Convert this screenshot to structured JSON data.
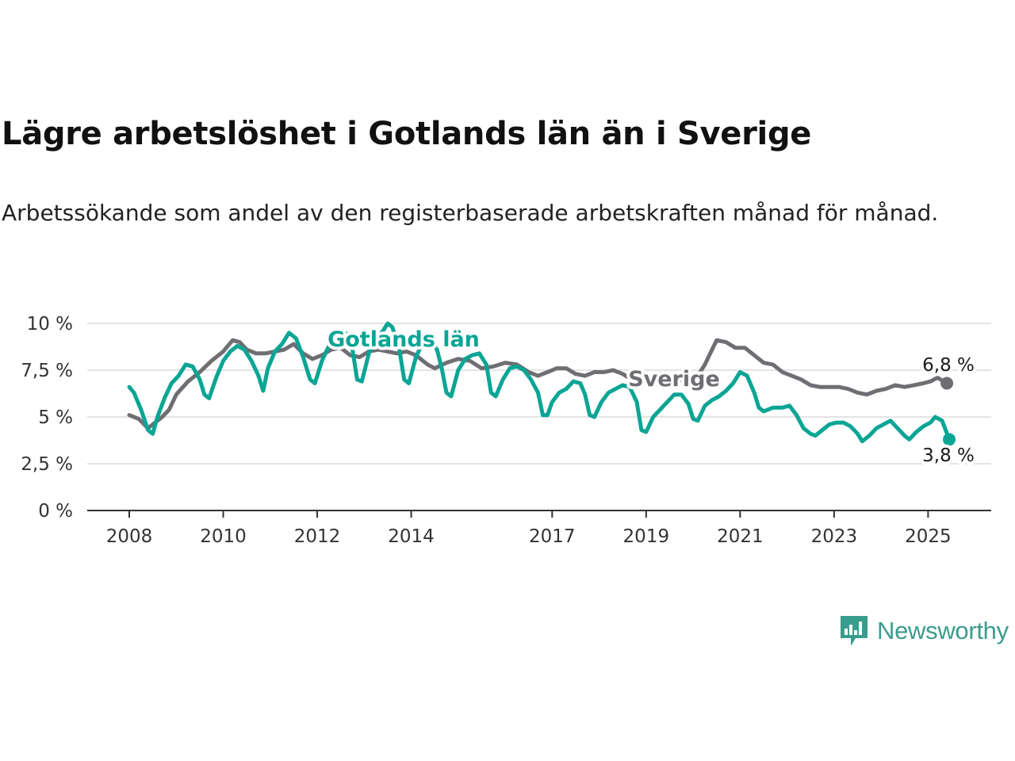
{
  "title": "Lägre arbetslöshet i Gotlands län än i Sverige",
  "subtitle": "Arbetssökande som andel av den registerbaserade arbetskraften månad för månad.",
  "brand": {
    "name": "Newsworthy",
    "color": "#3a9c8c",
    "icon": "newsworthy-logo-icon"
  },
  "chart_data": {
    "type": "line",
    "title": "Lägre arbetslöshet i Gotlands län än i Sverige",
    "xlabel": "",
    "ylabel": "",
    "ylim": [
      0,
      10
    ],
    "xlim": [
      2007.9,
      2026.15
    ],
    "grid": true,
    "y_ticks": [
      {
        "value": 0,
        "label": "0 %"
      },
      {
        "value": 2.5,
        "label": "2,5 %"
      },
      {
        "value": 5,
        "label": "5 %"
      },
      {
        "value": 7.5,
        "label": "7,5 %"
      },
      {
        "value": 10,
        "label": "10 %"
      }
    ],
    "x_ticks": [
      {
        "value": 2008,
        "label": "2008"
      },
      {
        "value": 2010,
        "label": "2010"
      },
      {
        "value": 2012,
        "label": "2012"
      },
      {
        "value": 2014,
        "label": "2014"
      },
      {
        "value": 2017,
        "label": "2017"
      },
      {
        "value": 2019,
        "label": "2019"
      },
      {
        "value": 2021,
        "label": "2021"
      },
      {
        "value": 2023,
        "label": "2023"
      },
      {
        "value": 2025,
        "label": "2025"
      }
    ],
    "series": [
      {
        "name": "Sverige",
        "color": "#6e6e73",
        "end_label": "6,8 %",
        "points": [
          [
            2008.0,
            5.1
          ],
          [
            2008.2,
            4.9
          ],
          [
            2008.4,
            4.4
          ],
          [
            2008.55,
            4.7
          ],
          [
            2008.7,
            5.0
          ],
          [
            2008.85,
            5.4
          ],
          [
            2009.0,
            6.2
          ],
          [
            2009.25,
            6.9
          ],
          [
            2009.5,
            7.4
          ],
          [
            2009.75,
            8.0
          ],
          [
            2010.0,
            8.5
          ],
          [
            2010.2,
            9.1
          ],
          [
            2010.35,
            9.0
          ],
          [
            2010.5,
            8.6
          ],
          [
            2010.7,
            8.4
          ],
          [
            2010.9,
            8.4
          ],
          [
            2011.1,
            8.5
          ],
          [
            2011.3,
            8.6
          ],
          [
            2011.5,
            8.9
          ],
          [
            2011.7,
            8.4
          ],
          [
            2011.9,
            8.1
          ],
          [
            2012.1,
            8.3
          ],
          [
            2012.3,
            8.6
          ],
          [
            2012.5,
            8.7
          ],
          [
            2012.7,
            8.3
          ],
          [
            2012.9,
            8.2
          ],
          [
            2013.1,
            8.5
          ],
          [
            2013.3,
            8.6
          ],
          [
            2013.5,
            8.5
          ],
          [
            2013.7,
            8.4
          ],
          [
            2013.9,
            8.5
          ],
          [
            2014.1,
            8.3
          ],
          [
            2014.35,
            7.8
          ],
          [
            2014.5,
            7.6
          ],
          [
            2014.75,
            7.9
          ],
          [
            2015.0,
            8.1
          ],
          [
            2015.25,
            8.0
          ],
          [
            2015.5,
            7.6
          ],
          [
            2015.75,
            7.7
          ],
          [
            2016.0,
            7.9
          ],
          [
            2016.25,
            7.8
          ],
          [
            2016.5,
            7.4
          ],
          [
            2016.7,
            7.2
          ],
          [
            2016.9,
            7.4
          ],
          [
            2017.1,
            7.6
          ],
          [
            2017.3,
            7.6
          ],
          [
            2017.5,
            7.3
          ],
          [
            2017.7,
            7.2
          ],
          [
            2017.9,
            7.4
          ],
          [
            2018.1,
            7.4
          ],
          [
            2018.3,
            7.5
          ],
          [
            2018.5,
            7.3
          ],
          [
            2018.7,
            7.0
          ],
          [
            2018.9,
            7.0
          ],
          [
            2019.1,
            7.1
          ],
          [
            2019.3,
            7.3
          ],
          [
            2019.6,
            7.0
          ],
          [
            2019.9,
            6.9
          ],
          [
            2020.1,
            7.2
          ],
          [
            2020.25,
            7.8
          ],
          [
            2020.5,
            9.1
          ],
          [
            2020.7,
            9.0
          ],
          [
            2020.9,
            8.7
          ],
          [
            2021.1,
            8.7
          ],
          [
            2021.3,
            8.3
          ],
          [
            2021.5,
            7.9
          ],
          [
            2021.7,
            7.8
          ],
          [
            2021.9,
            7.4
          ],
          [
            2022.1,
            7.2
          ],
          [
            2022.3,
            7.0
          ],
          [
            2022.5,
            6.7
          ],
          [
            2022.7,
            6.6
          ],
          [
            2022.9,
            6.6
          ],
          [
            2023.1,
            6.6
          ],
          [
            2023.3,
            6.5
          ],
          [
            2023.5,
            6.3
          ],
          [
            2023.7,
            6.2
          ],
          [
            2023.9,
            6.4
          ],
          [
            2024.1,
            6.5
          ],
          [
            2024.3,
            6.7
          ],
          [
            2024.5,
            6.6
          ],
          [
            2024.7,
            6.7
          ],
          [
            2024.9,
            6.8
          ],
          [
            2025.05,
            6.9
          ],
          [
            2025.2,
            7.1
          ],
          [
            2025.4,
            6.8
          ]
        ]
      },
      {
        "name": "Gotlands län",
        "color": "#0aa595",
        "end_label": "3,8 %",
        "points": [
          [
            2008.0,
            6.6
          ],
          [
            2008.1,
            6.3
          ],
          [
            2008.25,
            5.4
          ],
          [
            2008.4,
            4.3
          ],
          [
            2008.5,
            4.1
          ],
          [
            2008.6,
            5.0
          ],
          [
            2008.75,
            6.0
          ],
          [
            2008.9,
            6.8
          ],
          [
            2009.05,
            7.2
          ],
          [
            2009.2,
            7.8
          ],
          [
            2009.35,
            7.7
          ],
          [
            2009.5,
            7.0
          ],
          [
            2009.6,
            6.2
          ],
          [
            2009.7,
            6.0
          ],
          [
            2009.85,
            7.1
          ],
          [
            2010.0,
            8.0
          ],
          [
            2010.15,
            8.5
          ],
          [
            2010.3,
            8.8
          ],
          [
            2010.45,
            8.6
          ],
          [
            2010.6,
            8.0
          ],
          [
            2010.75,
            7.2
          ],
          [
            2010.85,
            6.4
          ],
          [
            2010.95,
            7.6
          ],
          [
            2011.1,
            8.5
          ],
          [
            2011.25,
            8.9
          ],
          [
            2011.4,
            9.5
          ],
          [
            2011.55,
            9.2
          ],
          [
            2011.7,
            8.2
          ],
          [
            2011.85,
            7.0
          ],
          [
            2011.95,
            6.8
          ],
          [
            2012.1,
            8.0
          ],
          [
            2012.25,
            8.8
          ],
          [
            2012.4,
            9.4
          ],
          [
            2012.5,
            9.6
          ],
          [
            2012.6,
            9.5
          ],
          [
            2012.75,
            8.6
          ],
          [
            2012.85,
            7.0
          ],
          [
            2012.95,
            6.9
          ],
          [
            2013.1,
            8.4
          ],
          [
            2013.25,
            9.2
          ],
          [
            2013.4,
            9.6
          ],
          [
            2013.5,
            10.0
          ],
          [
            2013.6,
            9.8
          ],
          [
            2013.75,
            8.6
          ],
          [
            2013.85,
            7.0
          ],
          [
            2013.95,
            6.8
          ],
          [
            2014.1,
            8.2
          ],
          [
            2014.25,
            9.0
          ],
          [
            2014.4,
            9.1
          ],
          [
            2014.55,
            8.6
          ],
          [
            2014.65,
            7.6
          ],
          [
            2014.75,
            6.3
          ],
          [
            2014.85,
            6.1
          ],
          [
            2015.0,
            7.5
          ],
          [
            2015.15,
            8.1
          ],
          [
            2015.3,
            8.3
          ],
          [
            2015.45,
            8.4
          ],
          [
            2015.6,
            7.8
          ],
          [
            2015.7,
            6.3
          ],
          [
            2015.8,
            6.1
          ],
          [
            2015.95,
            7.0
          ],
          [
            2016.1,
            7.6
          ],
          [
            2016.25,
            7.7
          ],
          [
            2016.4,
            7.5
          ],
          [
            2016.55,
            7.0
          ],
          [
            2016.7,
            6.3
          ],
          [
            2016.8,
            5.1
          ],
          [
            2016.9,
            5.1
          ],
          [
            2017.0,
            5.8
          ],
          [
            2017.15,
            6.3
          ],
          [
            2017.3,
            6.5
          ],
          [
            2017.45,
            6.9
          ],
          [
            2017.6,
            6.8
          ],
          [
            2017.7,
            6.2
          ],
          [
            2017.8,
            5.1
          ],
          [
            2017.9,
            5.0
          ],
          [
            2018.05,
            5.8
          ],
          [
            2018.2,
            6.3
          ],
          [
            2018.35,
            6.5
          ],
          [
            2018.5,
            6.7
          ],
          [
            2018.65,
            6.6
          ],
          [
            2018.8,
            5.8
          ],
          [
            2018.9,
            4.3
          ],
          [
            2019.0,
            4.2
          ],
          [
            2019.15,
            5.0
          ],
          [
            2019.3,
            5.4
          ],
          [
            2019.45,
            5.8
          ],
          [
            2019.6,
            6.2
          ],
          [
            2019.75,
            6.2
          ],
          [
            2019.9,
            5.7
          ],
          [
            2020.0,
            4.9
          ],
          [
            2020.1,
            4.8
          ],
          [
            2020.25,
            5.6
          ],
          [
            2020.4,
            5.9
          ],
          [
            2020.55,
            6.1
          ],
          [
            2020.7,
            6.4
          ],
          [
            2020.85,
            6.8
          ],
          [
            2021.0,
            7.4
          ],
          [
            2021.15,
            7.2
          ],
          [
            2021.3,
            6.3
          ],
          [
            2021.4,
            5.5
          ],
          [
            2021.5,
            5.3
          ],
          [
            2021.7,
            5.5
          ],
          [
            2021.9,
            5.5
          ],
          [
            2022.05,
            5.6
          ],
          [
            2022.2,
            5.1
          ],
          [
            2022.35,
            4.4
          ],
          [
            2022.5,
            4.1
          ],
          [
            2022.6,
            4.0
          ],
          [
            2022.75,
            4.3
          ],
          [
            2022.9,
            4.6
          ],
          [
            2023.05,
            4.7
          ],
          [
            2023.2,
            4.7
          ],
          [
            2023.35,
            4.5
          ],
          [
            2023.5,
            4.1
          ],
          [
            2023.6,
            3.7
          ],
          [
            2023.75,
            4.0
          ],
          [
            2023.9,
            4.4
          ],
          [
            2024.05,
            4.6
          ],
          [
            2024.2,
            4.8
          ],
          [
            2024.35,
            4.4
          ],
          [
            2024.5,
            4.0
          ],
          [
            2024.6,
            3.8
          ],
          [
            2024.75,
            4.2
          ],
          [
            2024.9,
            4.5
          ],
          [
            2025.05,
            4.7
          ],
          [
            2025.15,
            5.0
          ],
          [
            2025.3,
            4.8
          ],
          [
            2025.45,
            3.8
          ]
        ]
      }
    ]
  }
}
